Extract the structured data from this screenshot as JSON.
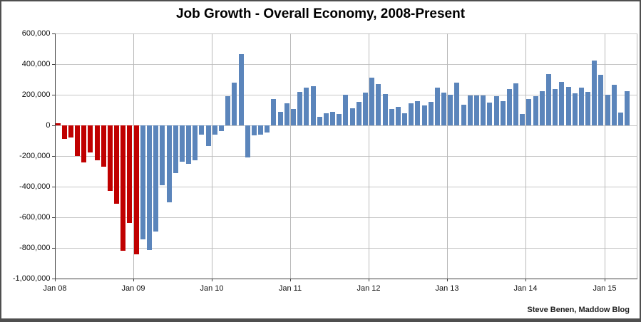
{
  "title": "Job Growth - Overall Economy, 2008-Present",
  "attribution": "Steve Benen, Maddow Blog",
  "chart_data": {
    "type": "bar",
    "title": "Job Growth - Overall Economy, 2008-Present",
    "xlabel": "",
    "ylabel": "",
    "start_month": "Jan 2008",
    "end_month": "Apr 2015",
    "ylim": [
      -1000000,
      600000
    ],
    "y_step": 200000,
    "grid": true,
    "legend": "none",
    "y_tick_labels": [
      "600,000",
      "400,000",
      "200,000",
      "0",
      "-200,000",
      "-400,000",
      "-600,000",
      "-800,000",
      "-1,000,000"
    ],
    "x_tick_labels": [
      "Jan 08",
      "Jan 09",
      "Jan 10",
      "Jan 11",
      "Jan 12",
      "Jan 13",
      "Jan 14",
      "Jan 15"
    ],
    "colors": {
      "bush_era_red": "#c00000",
      "obama_era_blue": "#5b85bb"
    },
    "red_bar_count": 13,
    "values": [
      15000,
      -90000,
      -80000,
      -200000,
      -240000,
      -175000,
      -230000,
      -270000,
      -430000,
      -510000,
      -820000,
      -635000,
      -840000,
      -745000,
      -815000,
      -695000,
      -390000,
      -500000,
      -310000,
      -235000,
      -250000,
      -230000,
      -60000,
      -135000,
      -60000,
      -35000,
      190000,
      280000,
      465000,
      -210000,
      -65000,
      -60000,
      -45000,
      170000,
      90000,
      145000,
      105000,
      220000,
      245000,
      255000,
      55000,
      80000,
      90000,
      75000,
      200000,
      110000,
      155000,
      215000,
      310000,
      270000,
      205000,
      105000,
      120000,
      80000,
      145000,
      160000,
      130000,
      155000,
      245000,
      215000,
      200000,
      280000,
      135000,
      195000,
      195000,
      195000,
      150000,
      190000,
      160000,
      235000,
      275000,
      75000,
      170000,
      190000,
      225000,
      335000,
      235000,
      285000,
      250000,
      210000,
      245000,
      220000,
      423000,
      330000,
      200000,
      265000,
      85000,
      223000
    ]
  }
}
